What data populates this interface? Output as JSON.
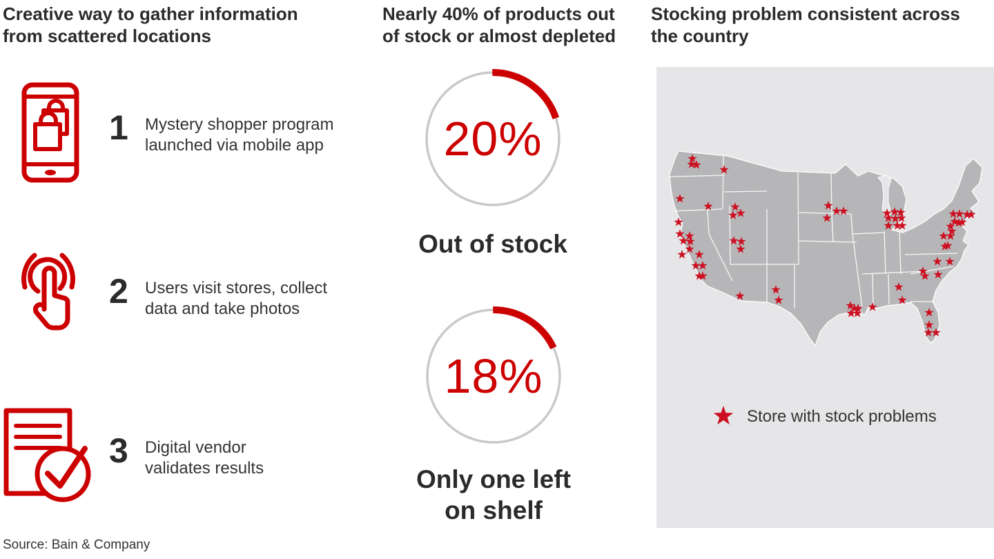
{
  "colors": {
    "accent_red": "#cc0000",
    "star_red": "#cc1021",
    "title_color": "#2b2b2b",
    "body_color": "#333333",
    "panel_bg": "#e6e6e8",
    "map_fill": "#b6b6b8",
    "ring_gray": "#c9c9c9"
  },
  "columns": {
    "left": {
      "title_lines": [
        "Creative way to gather information",
        "from scattered locations"
      ],
      "steps": [
        {
          "number": "1",
          "icon": "mobile-shopping-icon",
          "lines": [
            "Mystery shopper program",
            "launched via mobile app"
          ]
        },
        {
          "number": "2",
          "icon": "tap-icon",
          "lines": [
            "Users visit stores, collect",
            "data and take photos"
          ]
        },
        {
          "number": "3",
          "icon": "document-check-icon",
          "lines": [
            "Digital vendor",
            "validates results"
          ]
        }
      ]
    },
    "middle": {
      "title_lines": [
        "Nearly 40% of products out",
        "of stock or almost depleted"
      ]
    },
    "right": {
      "title_lines": [
        "Stocking problem consistent across",
        "the country"
      ],
      "legend_label": "Store with stock problems"
    }
  },
  "source": "Source: Bain & Company",
  "chart_data": [
    {
      "type": "pie",
      "subtype": "progress-donut",
      "display_value": "20%",
      "values": [
        20,
        80
      ],
      "label_lines": [
        "Out of stock"
      ],
      "colors": [
        "#cc0000",
        "#c9c9c9"
      ],
      "start_angle_deg": 0,
      "direction": "clockwise"
    },
    {
      "type": "pie",
      "subtype": "progress-donut",
      "display_value": "18%",
      "values": [
        18,
        82
      ],
      "label_lines": [
        "Only one left",
        "on shelf"
      ],
      "colors": [
        "#cc0000",
        "#c9c9c9"
      ],
      "start_angle_deg": 0,
      "direction": "clockwise"
    },
    {
      "type": "scatter",
      "subtype": "map-markers",
      "title": "Store with stock problems",
      "marker": "star",
      "marker_color": "#cc1021",
      "region": "contiguous United States",
      "units": "map panel px (489x668 viewBox)",
      "points": [
        [
          52,
          133
        ],
        [
          51,
          141
        ],
        [
          58,
          142
        ],
        [
          98,
          149
        ],
        [
          34,
          191
        ],
        [
          75,
          202
        ],
        [
          114,
          203
        ],
        [
          111,
          215
        ],
        [
          122,
          212
        ],
        [
          112,
          252
        ],
        [
          123,
          253
        ],
        [
          122,
          264
        ],
        [
          32,
          225
        ],
        [
          34,
          242
        ],
        [
          48,
          245
        ],
        [
          39,
          252
        ],
        [
          49,
          253
        ],
        [
          48,
          264
        ],
        [
          37,
          272
        ],
        [
          62,
          272
        ],
        [
          57,
          288
        ],
        [
          67,
          288
        ],
        [
          62,
          303
        ],
        [
          67,
          303
        ],
        [
          121,
          332
        ],
        [
          173,
          323
        ],
        [
          177,
          338
        ],
        [
          249,
          201
        ],
        [
          247,
          219
        ],
        [
          261,
          209
        ],
        [
          271,
          209
        ],
        [
          281,
          346
        ],
        [
          287,
          350
        ],
        [
          292,
          350
        ],
        [
          282,
          357
        ],
        [
          291,
          357
        ],
        [
          313,
          348
        ],
        [
          351,
          319
        ],
        [
          356,
          338
        ],
        [
          407,
          282
        ],
        [
          425,
          282
        ],
        [
          386,
          296
        ],
        [
          389,
          303
        ],
        [
          408,
          301
        ],
        [
          395,
          356
        ],
        [
          395,
          374
        ],
        [
          394,
          385
        ],
        [
          405,
          385
        ],
        [
          334,
          212
        ],
        [
          345,
          210
        ],
        [
          354,
          211
        ],
        [
          336,
          219
        ],
        [
          346,
          220
        ],
        [
          355,
          219
        ],
        [
          336,
          230
        ],
        [
          349,
          230
        ],
        [
          356,
          230
        ],
        [
          430,
          213
        ],
        [
          439,
          213
        ],
        [
          450,
          214
        ],
        [
          456,
          214
        ],
        [
          432,
          224
        ],
        [
          438,
          226
        ],
        [
          443,
          225
        ],
        [
          426,
          231
        ],
        [
          428,
          238
        ],
        [
          416,
          245
        ],
        [
          426,
          245
        ],
        [
          418,
          260
        ],
        [
          422,
          259
        ]
      ]
    }
  ]
}
